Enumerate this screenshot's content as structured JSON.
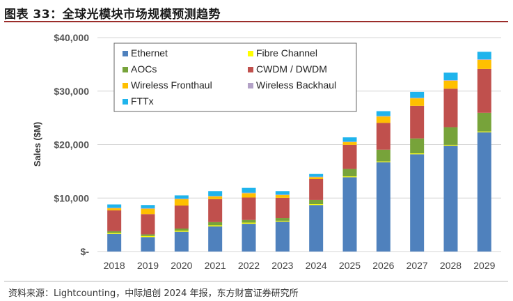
{
  "title": "图表 33：全球光模块市场规模预测趋势",
  "source": "资料来源：Lightcounting，中际旭创 2024 年报，东方财富证券研究所",
  "chart_data": {
    "type": "bar",
    "stacked": true,
    "title": "",
    "xlabel": "",
    "ylabel": "Sales ($M)",
    "ylim": [
      0,
      40000
    ],
    "yticks": [
      0,
      10000,
      20000,
      30000,
      40000
    ],
    "ytick_labels": [
      "$-",
      "$10,000",
      "$20,000",
      "$30,000",
      "$40,000"
    ],
    "grid": true,
    "legend": "top-left",
    "categories": [
      "2018",
      "2019",
      "2020",
      "2021",
      "2022",
      "2023",
      "2024",
      "2025",
      "2026",
      "2027",
      "2028",
      "2029"
    ],
    "series": [
      {
        "name": "Ethernet",
        "color": "#4f81bd",
        "values": [
          3300,
          2700,
          3700,
          4700,
          5200,
          5600,
          8700,
          13900,
          16700,
          18200,
          19800,
          22300
        ]
      },
      {
        "name": "Fibre Channel",
        "color": "#ffff00",
        "values": [
          200,
          200,
          200,
          200,
          200,
          150,
          150,
          150,
          150,
          150,
          150,
          150
        ]
      },
      {
        "name": "AOCs",
        "color": "#77a33a",
        "values": [
          300,
          300,
          400,
          600,
          500,
          500,
          800,
          1400,
          2200,
          2800,
          3300,
          3500
        ]
      },
      {
        "name": "CWDM / DWDM",
        "color": "#c0504d",
        "values": [
          3900,
          3800,
          4300,
          4300,
          4200,
          3800,
          3900,
          4500,
          5000,
          6100,
          7200,
          8200
        ]
      },
      {
        "name": "Wireless Fronthaul",
        "color": "#ffc000",
        "values": [
          400,
          1000,
          1200,
          500,
          800,
          500,
          350,
          500,
          1200,
          1400,
          1500,
          1700
        ]
      },
      {
        "name": "Wireless Backhaul",
        "color": "#b3a2c7",
        "values": [
          100,
          100,
          100,
          100,
          100,
          100,
          100,
          100,
          100,
          100,
          100,
          100
        ]
      },
      {
        "name": "FTTx",
        "color": "#1fb4ec",
        "values": [
          600,
          600,
          600,
          900,
          900,
          650,
          500,
          800,
          900,
          1100,
          1400,
          1400
        ]
      }
    ]
  }
}
